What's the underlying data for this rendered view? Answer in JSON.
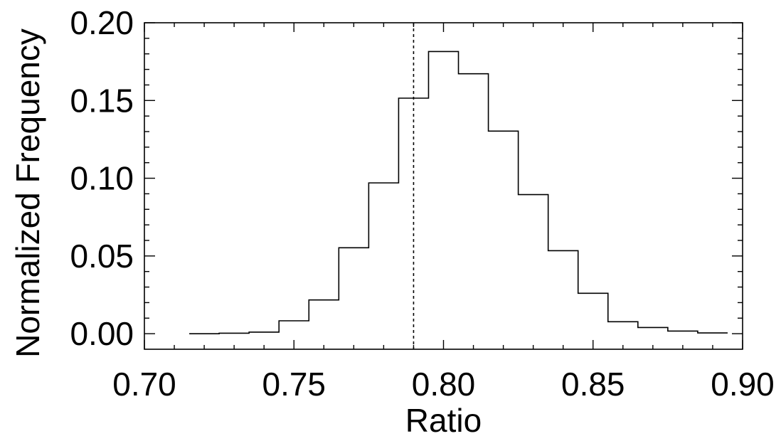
{
  "chart_data": {
    "type": "histogram",
    "title": "",
    "xlabel": "Ratio",
    "ylabel": "Normalized Frequency",
    "xlim": [
      0.7,
      0.9
    ],
    "ylim": [
      -0.01,
      0.2
    ],
    "xticks": [
      "0.70",
      "0.75",
      "0.80",
      "0.85",
      "0.90"
    ],
    "yticks": [
      "0.00",
      "0.05",
      "0.10",
      "0.15",
      "0.20"
    ],
    "xtick_values": [
      0.7,
      0.75,
      0.8,
      0.85,
      0.9
    ],
    "ytick_values": [
      0.0,
      0.05,
      0.1,
      0.15,
      0.2
    ],
    "grid": false,
    "line_color": "#000000",
    "bin_edges": [
      0.715,
      0.725,
      0.735,
      0.745,
      0.755,
      0.765,
      0.775,
      0.785,
      0.795,
      0.805,
      0.815,
      0.825,
      0.835,
      0.845,
      0.855,
      0.865,
      0.875,
      0.885,
      0.895
    ],
    "values": [
      0.0,
      0.0003,
      0.001,
      0.0083,
      0.0217,
      0.0553,
      0.097,
      0.1515,
      0.1815,
      0.1672,
      0.1303,
      0.0895,
      0.0534,
      0.026,
      0.0077,
      0.004,
      0.0017,
      0.0005
    ],
    "reference_line": {
      "x": 0.79,
      "style": "dashed"
    }
  }
}
